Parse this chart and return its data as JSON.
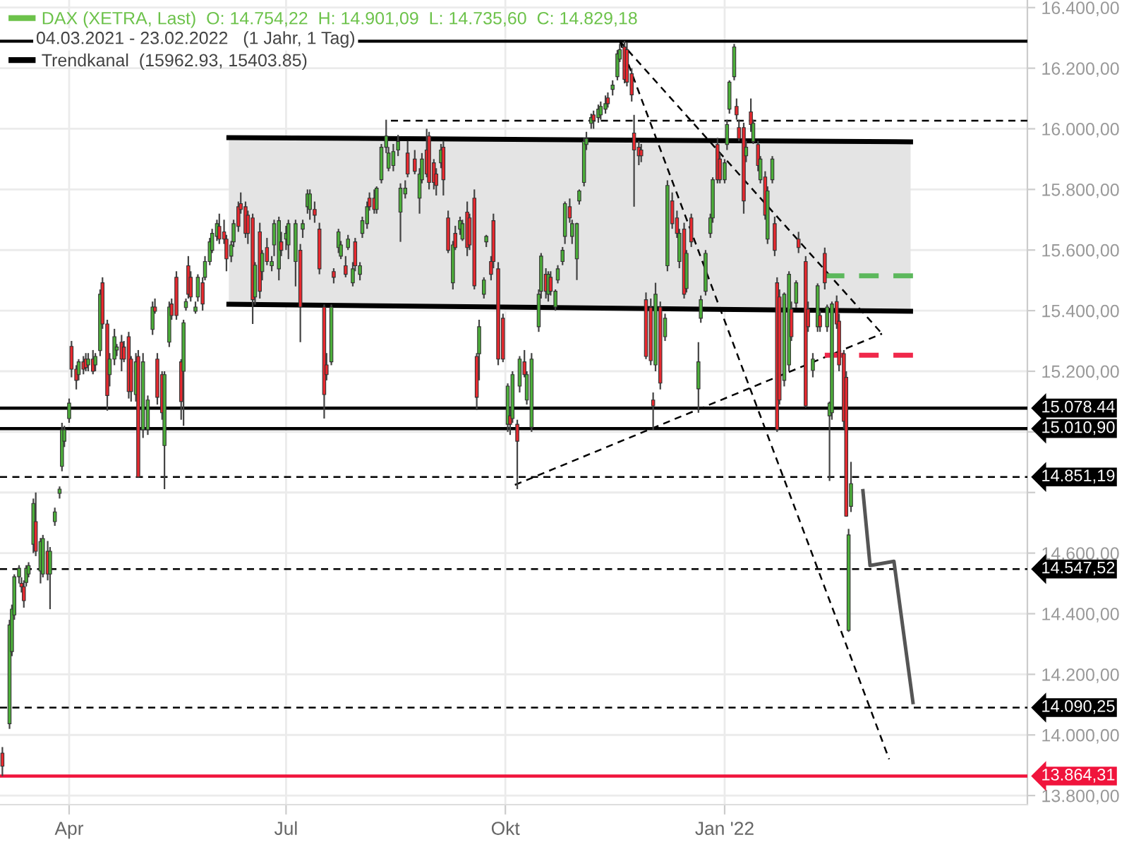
{
  "chart_data": {
    "type": "candlestick",
    "annotations": [
      "04.03.2021 - 23.02.2022   (1 Jahr, 1 Tag)"
    ],
    "xlim": [
      "2021-03-03",
      "2022-05-08"
    ],
    "xticks": [
      {
        "value": "2021-04-01",
        "label": "Apr"
      },
      {
        "value": "2021-07-01",
        "label": "Jul"
      },
      {
        "value": "2021-10-01",
        "label": "Okt"
      },
      {
        "value": "2022-01-01",
        "label": "Jan '22"
      }
    ],
    "ylim": [
      13770,
      16425
    ],
    "yticks": [
      {
        "value": 13800,
        "label": "13.800,00"
      },
      {
        "value": 14000,
        "label": "14.000,00"
      },
      {
        "value": 14200,
        "label": "14.200,00"
      },
      {
        "value": 14400,
        "label": "14.400,00"
      },
      {
        "value": 14600,
        "label": "14.600,00"
      },
      {
        "value": 14800,
        "label": null
      },
      {
        "value": 15000,
        "label": null
      },
      {
        "value": 15200,
        "label": "15.200,00"
      },
      {
        "value": 15400,
        "label": "15.400,00"
      },
      {
        "value": 15600,
        "label": "15.600,00"
      },
      {
        "value": 15800,
        "label": "15.800,00"
      },
      {
        "value": 16000,
        "label": "16.000,00"
      },
      {
        "value": 16200,
        "label": "16.200,00"
      },
      {
        "value": 16400,
        "label": "16.400,00"
      }
    ],
    "grid": true,
    "legend": "top left",
    "ref_lines": [
      {
        "axis": "y",
        "value": 16289,
        "label": null,
        "color": "#000000",
        "line_style": "solid"
      },
      {
        "axis": "y",
        "value": 15078.44,
        "label": "15.078.44",
        "color": "#000000",
        "line_style": "solid"
      },
      {
        "axis": "y",
        "value": 15010.9,
        "label": "15.010,90",
        "color": "#000000",
        "line_style": "solid"
      },
      {
        "axis": "y",
        "value": 14851.19,
        "label": "14.851,19",
        "color": "#000000",
        "line_style": "dashed"
      },
      {
        "axis": "y",
        "value": 14547.52,
        "label": "14.547,52",
        "color": "#000000",
        "line_style": "dashed"
      },
      {
        "axis": "y",
        "value": 14090.25,
        "label": "14.090,25",
        "color": "#000000",
        "line_style": "dashed"
      },
      {
        "axis": "y",
        "value": 13864.31,
        "label": "13.864,31",
        "color": "#f0143c",
        "line_style": "solid"
      }
    ],
    "series": [
      {
        "name": "DAX (XETRA, Last)  O: 14.754,22  H: 14.901,09  L: 14.735,60  C: 14.829,18",
        "color": "#6cc24a",
        "x": [
          "2021-03-04",
          "2021-03-07",
          "2021-03-08",
          "2021-03-09",
          "2021-03-11",
          "2021-03-12",
          "2021-03-13",
          "2021-03-14",
          "2021-03-15",
          "2021-03-17",
          "2021-03-18",
          "2021-03-20",
          "2021-03-21",
          "2021-03-23",
          "2021-03-24",
          "2021-03-26",
          "2021-03-28",
          "2021-03-29",
          "2021-03-30",
          "2021-04-01",
          "2021-04-02",
          "2021-04-04",
          "2021-04-05",
          "2021-04-07",
          "2021-04-08",
          "2021-04-09",
          "2021-04-11",
          "2021-04-12",
          "2021-04-14",
          "2021-04-15",
          "2021-04-17",
          "2021-04-18",
          "2021-04-20",
          "2021-04-21",
          "2021-04-23",
          "2021-04-24",
          "2021-04-26",
          "2021-04-27",
          "2021-04-29",
          "2021-04-30",
          "2021-05-02",
          "2021-05-04",
          "2021-05-06",
          "2021-05-07",
          "2021-05-08",
          "2021-05-10",
          "2021-05-11",
          "2021-05-13",
          "2021-05-14",
          "2021-05-16",
          "2021-05-18",
          "2021-05-19",
          "2021-05-20",
          "2021-05-21",
          "2021-05-22",
          "2021-05-24",
          "2021-05-25",
          "2021-05-27",
          "2021-05-28",
          "2021-05-30",
          "2021-05-31",
          "2021-06-02",
          "2021-06-03",
          "2021-06-05",
          "2021-06-06",
          "2021-06-08",
          "2021-06-09",
          "2021-06-11",
          "2021-06-12",
          "2021-06-14",
          "2021-06-15",
          "2021-06-17",
          "2021-06-18",
          "2021-06-20",
          "2021-06-21",
          "2021-06-23",
          "2021-06-25",
          "2021-06-26",
          "2021-06-28",
          "2021-06-29",
          "2021-07-01",
          "2021-07-02",
          "2021-07-05",
          "2021-07-07",
          "2021-07-08",
          "2021-07-10",
          "2021-07-11",
          "2021-07-13",
          "2021-07-15",
          "2021-07-17",
          "2021-07-18",
          "2021-07-20",
          "2021-07-21",
          "2021-07-23",
          "2021-07-24",
          "2021-07-26",
          "2021-07-27",
          "2021-07-29",
          "2021-07-30",
          "2021-08-01",
          "2021-08-02",
          "2021-08-04",
          "2021-08-05",
          "2021-08-07",
          "2021-08-08",
          "2021-08-10",
          "2021-08-12",
          "2021-08-13",
          "2021-08-15",
          "2021-08-17",
          "2021-08-18",
          "2021-08-20",
          "2021-08-21",
          "2021-08-24",
          "2021-08-26",
          "2021-08-27",
          "2021-08-29",
          "2021-08-30",
          "2021-09-01",
          "2021-09-02",
          "2021-09-04",
          "2021-09-05",
          "2021-09-07",
          "2021-09-09",
          "2021-09-10",
          "2021-09-12",
          "2021-09-13",
          "2021-09-15",
          "2021-09-16",
          "2021-09-18",
          "2021-09-19",
          "2021-09-20",
          "2021-09-22",
          "2021-09-23",
          "2021-09-25",
          "2021-09-26",
          "2021-09-28",
          "2021-09-30",
          "2021-10-02",
          "2021-10-03",
          "2021-10-04",
          "2021-10-06",
          "2021-10-07",
          "2021-10-09",
          "2021-10-10",
          "2021-10-12",
          "2021-10-15",
          "2021-10-16",
          "2021-10-18",
          "2021-10-19",
          "2021-10-20",
          "2021-10-22",
          "2021-10-23",
          "2021-10-25",
          "2021-10-26",
          "2021-10-28",
          "2021-10-29",
          "2021-10-31",
          "2021-11-01",
          "2021-11-03",
          "2021-11-04",
          "2021-11-06",
          "2021-11-07",
          "2021-11-09",
          "2021-11-10",
          "2021-11-12",
          "2021-11-13",
          "2021-11-15",
          "2021-11-17",
          "2021-11-18",
          "2021-11-20",
          "2021-11-21",
          "2021-11-23",
          "2021-11-24",
          "2021-11-26",
          "2021-11-27",
          "2021-11-29",
          "2021-12-01",
          "2021-12-02",
          "2021-12-03",
          "2021-12-05",
          "2021-12-07",
          "2021-12-08",
          "2021-12-10",
          "2021-12-12",
          "2021-12-13",
          "2021-12-15",
          "2021-12-16",
          "2021-12-18",
          "2021-12-21",
          "2021-12-22",
          "2021-12-24",
          "2021-12-26",
          "2021-12-27",
          "2021-12-29",
          "2021-12-30",
          "2022-01-01",
          "2022-01-02",
          "2022-01-03",
          "2022-01-05",
          "2022-01-06",
          "2022-01-07",
          "2022-01-09",
          "2022-01-10",
          "2022-01-12",
          "2022-01-13",
          "2022-01-15",
          "2022-01-16",
          "2022-01-18",
          "2022-01-19",
          "2022-01-21",
          "2022-01-22",
          "2022-01-23",
          "2022-01-24",
          "2022-01-26",
          "2022-01-28",
          "2022-01-29",
          "2022-01-31",
          "2022-02-01",
          "2022-02-04",
          "2022-02-05",
          "2022-02-07",
          "2022-02-09",
          "2022-02-10",
          "2022-02-12",
          "2022-02-13",
          "2022-02-14",
          "2022-02-15",
          "2022-02-17",
          "2022-02-18",
          "2022-02-20",
          "2022-02-21",
          "2022-02-22",
          "2022-02-23"
        ],
        "ohlc": [
          [
            13940,
            13960,
            13864,
            13897
          ],
          [
            14037,
            14380,
            14020,
            14363
          ],
          [
            14275,
            14430,
            14260,
            14415
          ],
          [
            14396,
            14530,
            14380,
            14522
          ],
          [
            14522,
            14560,
            14500,
            14550
          ],
          [
            14500,
            14520,
            14470,
            14489
          ],
          [
            14489,
            14510,
            14420,
            14443
          ],
          [
            14503,
            14560,
            14490,
            14550
          ],
          [
            14531,
            14570,
            14520,
            14559
          ],
          [
            14629,
            14780,
            14600,
            14764
          ],
          [
            14704,
            14800,
            14590,
            14606
          ],
          [
            14541,
            14650,
            14500,
            14638
          ],
          [
            14531,
            14660,
            14520,
            14648
          ],
          [
            14606,
            14640,
            14510,
            14531
          ],
          [
            14531,
            14620,
            14415,
            14606
          ],
          [
            14704,
            14750,
            14690,
            14736
          ],
          [
            14797,
            14820,
            14780,
            14811
          ],
          [
            14886,
            15030,
            14870,
            15007
          ],
          [
            14969,
            15020,
            14950,
            15007
          ],
          [
            15044,
            15110,
            15030,
            15095
          ],
          [
            15282,
            15300,
            15180,
            15207
          ],
          [
            15207,
            15220,
            15140,
            15170
          ],
          [
            15189,
            15240,
            15170,
            15231
          ],
          [
            15231,
            15250,
            15190,
            15207
          ],
          [
            15240,
            15260,
            15200,
            15212
          ],
          [
            15221,
            15260,
            15200,
            15240
          ],
          [
            15240,
            15270,
            15190,
            15200
          ],
          [
            15221,
            15260,
            15200,
            15249
          ],
          [
            15268,
            15470,
            15250,
            15454
          ],
          [
            15492,
            15510,
            15340,
            15356
          ],
          [
            15356,
            15370,
            15070,
            15120
          ],
          [
            15189,
            15260,
            15150,
            15240
          ],
          [
            15240,
            15340,
            15220,
            15314
          ],
          [
            15270,
            15290,
            15250,
            15280
          ],
          [
            15296,
            15320,
            15200,
            15240
          ],
          [
            15280,
            15300,
            15230,
            15240
          ],
          [
            15314,
            15330,
            15110,
            15133
          ],
          [
            15240,
            15250,
            15100,
            15133
          ],
          [
            15123,
            15260,
            15100,
            15231
          ],
          [
            15249,
            15270,
            14848,
            14851
          ],
          [
            15007,
            15260,
            14980,
            15231
          ],
          [
            15007,
            15120,
            14990,
            15105
          ],
          [
            15338,
            15430,
            15320,
            15412
          ],
          [
            15412,
            15440,
            15390,
            15398
          ],
          [
            15240,
            15260,
            15090,
            15114
          ],
          [
            15189,
            15200,
            15040,
            15063
          ],
          [
            14955,
            15200,
            14811,
            15189
          ],
          [
            15296,
            15430,
            15280,
            15412
          ],
          [
            15422,
            15440,
            15370,
            15384
          ],
          [
            15510,
            15530,
            15370,
            15384
          ],
          [
            15231,
            15240,
            15040,
            15100
          ],
          [
            15200,
            15370,
            15020,
            15360
          ],
          [
            15410,
            15440,
            15400,
            15430
          ],
          [
            15548,
            15580,
            15440,
            15454
          ],
          [
            15510,
            15530,
            15430,
            15445
          ],
          [
            15398,
            15430,
            15390,
            15412
          ],
          [
            15445,
            15520,
            15430,
            15510
          ],
          [
            15492,
            15510,
            15400,
            15422
          ],
          [
            15510,
            15580,
            15500,
            15562
          ],
          [
            15562,
            15640,
            15550,
            15627
          ],
          [
            15599,
            15670,
            15590,
            15655
          ],
          [
            15645,
            15700,
            15630,
            15687
          ],
          [
            15678,
            15720,
            15620,
            15636
          ],
          [
            15660,
            15700,
            15620,
            15636
          ],
          [
            15636,
            15650,
            15530,
            15571
          ],
          [
            15580,
            15630,
            15560,
            15617
          ],
          [
            15627,
            15700,
            15610,
            15687
          ],
          [
            15743,
            15760,
            15660,
            15678
          ],
          [
            15753,
            15790,
            15720,
            15734
          ],
          [
            15743,
            15760,
            15640,
            15655
          ],
          [
            15715,
            15730,
            15620,
            15655
          ],
          [
            15706,
            15720,
            15356,
            15436
          ],
          [
            15445,
            15560,
            15420,
            15550
          ],
          [
            15660,
            15690,
            15440,
            15464
          ],
          [
            15529,
            15600,
            15500,
            15589
          ],
          [
            15608,
            15640,
            15550,
            15562
          ],
          [
            15548,
            15580,
            15530,
            15562
          ],
          [
            15617,
            15700,
            15580,
            15687
          ],
          [
            15538,
            15710,
            15500,
            15697
          ],
          [
            15627,
            15660,
            15580,
            15599
          ],
          [
            15636,
            15680,
            15600,
            15655
          ],
          [
            15617,
            15700,
            15570,
            15687
          ],
          [
            15562,
            15700,
            15480,
            15687
          ],
          [
            15599,
            15620,
            15296,
            15412
          ],
          [
            15669,
            15700,
            15640,
            15687
          ],
          [
            15743,
            15800,
            15720,
            15785
          ],
          [
            15734,
            15800,
            15700,
            15785
          ],
          [
            15734,
            15760,
            15690,
            15715
          ],
          [
            15669,
            15690,
            15520,
            15538
          ],
          [
            15412,
            15420,
            15044,
            15123
          ],
          [
            15221,
            15260,
            15170,
            15189
          ],
          [
            15231,
            15420,
            15220,
            15412
          ],
          [
            15529,
            15540,
            15490,
            15510
          ],
          [
            15608,
            15670,
            15590,
            15660
          ],
          [
            15580,
            15630,
            15570,
            15617
          ],
          [
            15548,
            15580,
            15510,
            15520
          ],
          [
            15608,
            15650,
            15600,
            15636
          ],
          [
            15492,
            15560,
            15480,
            15538
          ],
          [
            15627,
            15640,
            15530,
            15548
          ],
          [
            15520,
            15560,
            15500,
            15548
          ],
          [
            15655,
            15710,
            15640,
            15697
          ],
          [
            15687,
            15760,
            15670,
            15743
          ],
          [
            15771,
            15790,
            15730,
            15743
          ],
          [
            15771,
            15800,
            15720,
            15734
          ],
          [
            15734,
            15810,
            15720,
            15804
          ],
          [
            15832,
            15950,
            15820,
            15939
          ],
          [
            15939,
            16030,
            15920,
            15976
          ],
          [
            15870,
            15940,
            15860,
            15920
          ],
          [
            15879,
            15950,
            15860,
            15925
          ],
          [
            15930,
            15980,
            15910,
            15958
          ],
          [
            15725,
            15820,
            15627,
            15804
          ],
          [
            15785,
            15830,
            15770,
            15804
          ],
          [
            15920,
            15960,
            15840,
            15851
          ],
          [
            15900,
            15930,
            15850,
            15860
          ],
          [
            15771,
            15870,
            15720,
            15851
          ],
          [
            15832,
            15920,
            15820,
            15900
          ],
          [
            15930,
            16000,
            15840,
            15851
          ],
          [
            15976,
            15990,
            15800,
            15823
          ],
          [
            15888,
            15900,
            15800,
            15823
          ],
          [
            15851,
            15870,
            15780,
            15813
          ],
          [
            15888,
            15950,
            15870,
            15930
          ],
          [
            15939,
            15960,
            15780,
            15832
          ],
          [
            15706,
            15730,
            15590,
            15599
          ],
          [
            15492,
            15630,
            15470,
            15617
          ],
          [
            15655,
            15680,
            15600,
            15608
          ],
          [
            15669,
            15710,
            15650,
            15697
          ],
          [
            15636,
            15700,
            15630,
            15687
          ],
          [
            15725,
            15760,
            15580,
            15608
          ],
          [
            15706,
            15720,
            15600,
            15617
          ],
          [
            15771,
            15800,
            15470,
            15482
          ],
          [
            15249,
            15260,
            15072,
            15114
          ],
          [
            15258,
            15370,
            15170,
            15347
          ],
          [
            15454,
            15510,
            15440,
            15501
          ],
          [
            15627,
            15650,
            15610,
            15645
          ],
          [
            15562,
            15580,
            15500,
            15520
          ],
          [
            15697,
            15720,
            15540,
            15562
          ],
          [
            15538,
            15560,
            15220,
            15240
          ],
          [
            15375,
            15390,
            15230,
            15240
          ],
          [
            15025,
            15160,
            15000,
            15151
          ],
          [
            15053,
            15080,
            14990,
            15025
          ],
          [
            15044,
            15200,
            15030,
            15189
          ],
          [
            15025,
            15040,
            14811,
            14969
          ],
          [
            15151,
            15250,
            15130,
            15240
          ],
          [
            15231,
            15270,
            15180,
            15189
          ],
          [
            15105,
            15200,
            15090,
            15189
          ],
          [
            15015,
            15260,
            15000,
            15240
          ],
          [
            15347,
            15470,
            15330,
            15454
          ],
          [
            15464,
            15590,
            15440,
            15580
          ],
          [
            15520,
            15540,
            15440,
            15464
          ],
          [
            15454,
            15530,
            15430,
            15520
          ],
          [
            15510,
            15530,
            15450,
            15464
          ],
          [
            15412,
            15470,
            15400,
            15464
          ],
          [
            15501,
            15550,
            15490,
            15538
          ],
          [
            15562,
            15610,
            15550,
            15599
          ],
          [
            15645,
            15760,
            15620,
            15753
          ],
          [
            15743,
            15770,
            15690,
            15706
          ],
          [
            15645,
            15700,
            15620,
            15687
          ],
          [
            15571,
            15690,
            15501,
            15687
          ],
          [
            15762,
            15800,
            15750,
            15795
          ],
          [
            15823,
            15970,
            15810,
            15958
          ],
          [
            15948,
            15990,
            15930,
            15968
          ],
          [
            16018,
            16050,
            16000,
            16037
          ],
          [
            16046,
            16060,
            16000,
            16027
          ],
          [
            16037,
            16080,
            16020,
            16065
          ],
          [
            16046,
            16090,
            16030,
            16074
          ],
          [
            16065,
            16110,
            16050,
            16083
          ],
          [
            16102,
            16120,
            16070,
            16083
          ],
          [
            16130,
            16160,
            16110,
            16144
          ],
          [
            16172,
            16260,
            16160,
            16247
          ],
          [
            16230,
            16280,
            16220,
            16261
          ],
          [
            16270,
            16290,
            16150,
            16163
          ],
          [
            16261,
            16285,
            16140,
            16154
          ],
          [
            16182,
            16200,
            16090,
            16112
          ],
          [
            15986,
            16046,
            15743,
            15930
          ],
          [
            15939,
            15960,
            15880,
            15911
          ],
          [
            15930,
            15950,
            15890,
            15911
          ],
          [
            15436,
            15460,
            15240,
            15249
          ],
          [
            15410,
            15440,
            15220,
            15235
          ],
          [
            15105,
            15130,
            15007,
            15086
          ],
          [
            15221,
            15492,
            15200,
            15454
          ],
          [
            15412,
            15430,
            15140,
            15161
          ],
          [
            15314,
            15390,
            15300,
            15375
          ],
          [
            15548,
            15830,
            15530,
            15813
          ],
          [
            15762,
            15790,
            15670,
            15687
          ],
          [
            15706,
            15730,
            15640,
            15655
          ],
          [
            15562,
            15670,
            15540,
            15655
          ],
          [
            15669,
            15690,
            15440,
            15454
          ],
          [
            15473,
            15600,
            15460,
            15589
          ],
          [
            15706,
            15720,
            15610,
            15627
          ],
          [
            15142,
            15296,
            15063,
            15231
          ],
          [
            15375,
            15450,
            15360,
            15436
          ],
          [
            15464,
            15600,
            15450,
            15589
          ],
          [
            15655,
            15720,
            15640,
            15706
          ],
          [
            15706,
            15840,
            15690,
            15832
          ],
          [
            15948,
            15970,
            15820,
            15832
          ],
          [
            15900,
            15920,
            15820,
            15832
          ],
          [
            15832,
            15900,
            15820,
            15888
          ],
          [
            15948,
            16030,
            15930,
            16014
          ],
          [
            16065,
            16160,
            16050,
            16154
          ],
          [
            16172,
            16280,
            16160,
            16270
          ],
          [
            16074,
            16100,
            16030,
            16046
          ],
          [
            16004,
            16030,
            15960,
            15968
          ],
          [
            16004,
            16020,
            15720,
            15762
          ],
          [
            15911,
            15960,
            15890,
            15939
          ],
          [
            16056,
            16100,
            15990,
            16014
          ],
          [
            15958,
            16030,
            15950,
            16018
          ],
          [
            15948,
            15960,
            15860,
            15879
          ],
          [
            15832,
            15910,
            15820,
            15900
          ],
          [
            15841,
            15860,
            15700,
            15715
          ],
          [
            15636,
            15810,
            15620,
            15795
          ],
          [
            15832,
            15910,
            15820,
            15900
          ],
          [
            15687,
            15710,
            15580,
            15599
          ],
          [
            15492,
            15510,
            15000,
            15007
          ],
          [
            15445,
            15470,
            15090,
            15105
          ],
          [
            15170,
            15460,
            15150,
            15454
          ],
          [
            15221,
            15530,
            15200,
            15520
          ],
          [
            15405,
            15430,
            15300,
            15314
          ],
          [
            15425,
            15500,
            15410,
            15492
          ],
          [
            15636,
            15660,
            15590,
            15608
          ],
          [
            15562,
            15580,
            15080,
            15086
          ],
          [
            15405,
            15430,
            15330,
            15347
          ],
          [
            15203,
            15260,
            15180,
            15240
          ],
          [
            15347,
            15490,
            15330,
            15482
          ],
          [
            15384,
            15400,
            15330,
            15347
          ],
          [
            15589,
            15608,
            15470,
            15492
          ],
          [
            15347,
            15420,
            15330,
            15412
          ],
          [
            15053,
            15100,
            14838,
            15095
          ],
          [
            15063,
            15430,
            15040,
            15422
          ],
          [
            15430,
            15450,
            15340,
            15356
          ],
          [
            15365,
            15390,
            15200,
            15221
          ],
          [
            15258,
            15270,
            15010,
            15035
          ],
          [
            15180,
            15200,
            14720,
            14722
          ],
          [
            14345,
            14680,
            14340,
            14660
          ],
          [
            14754.22,
            14901.09,
            14735.6,
            14829.18
          ]
        ],
        "colors": [
          "#e8292f",
          "#4caf3a",
          "#4caf3a",
          "#4caf3a",
          "#4caf3a",
          "#e8292f",
          "#e8292f",
          "#4caf3a",
          "#4caf3a",
          "#4caf3a",
          "#e8292f",
          "#4caf3a",
          "#4caf3a",
          "#e8292f",
          "#4caf3a",
          "#4caf3a",
          "#4caf3a",
          "#4caf3a",
          "#4caf3a",
          "#4caf3a",
          "#e8292f",
          "#e8292f",
          "#4caf3a",
          "#e8292f",
          "#e8292f",
          "#4caf3a",
          "#e8292f",
          "#4caf3a",
          "#4caf3a",
          "#e8292f",
          "#e8292f",
          "#4caf3a",
          "#4caf3a",
          "#4caf3a",
          "#e8292f",
          "#e8292f",
          "#e8292f",
          "#e8292f",
          "#4caf3a",
          "#e8292f",
          "#4caf3a",
          "#4caf3a",
          "#4caf3a",
          "#e8292f",
          "#e8292f",
          "#e8292f",
          "#4caf3a",
          "#4caf3a",
          "#e8292f",
          "#e8292f",
          "#e8292f",
          "#4caf3a",
          "#4caf3a",
          "#e8292f",
          "#e8292f",
          "#4caf3a",
          "#4caf3a",
          "#e8292f",
          "#4caf3a",
          "#4caf3a",
          "#4caf3a",
          "#4caf3a",
          "#e8292f",
          "#e8292f",
          "#e8292f",
          "#4caf3a",
          "#4caf3a",
          "#e8292f",
          "#e8292f",
          "#e8292f",
          "#e8292f",
          "#e8292f",
          "#4caf3a",
          "#e8292f",
          "#4caf3a",
          "#e8292f",
          "#4caf3a",
          "#4caf3a",
          "#4caf3a",
          "#e8292f",
          "#4caf3a",
          "#4caf3a",
          "#4caf3a",
          "#e8292f",
          "#4caf3a",
          "#4caf3a",
          "#4caf3a",
          "#e8292f",
          "#e8292f",
          "#e8292f",
          "#e8292f",
          "#4caf3a",
          "#e8292f",
          "#4caf3a",
          "#4caf3a",
          "#e8292f",
          "#4caf3a",
          "#4caf3a",
          "#e8292f",
          "#4caf3a",
          "#4caf3a",
          "#4caf3a",
          "#e8292f",
          "#e8292f",
          "#4caf3a",
          "#4caf3a",
          "#4caf3a",
          "#4caf3a",
          "#4caf3a",
          "#4caf3a",
          "#4caf3a",
          "#4caf3a",
          "#e8292f",
          "#e8292f",
          "#4caf3a",
          "#4caf3a",
          "#e8292f",
          "#e8292f",
          "#e8292f",
          "#e8292f",
          "#4caf3a",
          "#e8292f",
          "#e8292f",
          "#4caf3a",
          "#e8292f",
          "#4caf3a",
          "#4caf3a",
          "#e8292f",
          "#e8292f",
          "#e8292f",
          "#e8292f",
          "#4caf3a",
          "#4caf3a",
          "#4caf3a",
          "#e8292f",
          "#e8292f",
          "#e8292f",
          "#e8292f",
          "#4caf3a",
          "#e8292f",
          "#4caf3a",
          "#e8292f",
          "#4caf3a",
          "#e8292f",
          "#4caf3a",
          "#4caf3a",
          "#4caf3a",
          "#4caf3a",
          "#e8292f",
          "#4caf3a",
          "#e8292f",
          "#4caf3a",
          "#4caf3a",
          "#4caf3a",
          "#4caf3a",
          "#e8292f",
          "#4caf3a",
          "#4caf3a",
          "#4caf3a",
          "#4caf3a",
          "#4caf3a",
          "#4caf3a",
          "#e8292f",
          "#4caf3a",
          "#4caf3a",
          "#4caf3a",
          "#e8292f",
          "#4caf3a",
          "#4caf3a",
          "#4caf3a",
          "#e8292f",
          "#e8292f",
          "#e8292f",
          "#e8292f",
          "#e8292f",
          "#e8292f",
          "#e8292f",
          "#e8292f",
          "#e8292f",
          "#4caf3a",
          "#e8292f",
          "#4caf3a",
          "#4caf3a",
          "#e8292f",
          "#e8292f",
          "#4caf3a",
          "#e8292f",
          "#4caf3a",
          "#e8292f",
          "#4caf3a",
          "#4caf3a",
          "#4caf3a",
          "#4caf3a",
          "#4caf3a",
          "#e8292f",
          "#e8292f",
          "#4caf3a",
          "#4caf3a",
          "#4caf3a",
          "#4caf3a",
          "#e8292f",
          "#e8292f",
          "#e8292f",
          "#4caf3a",
          "#e8292f",
          "#4caf3a",
          "#e8292f",
          "#4caf3a",
          "#e8292f",
          "#4caf3a",
          "#4caf3a",
          "#e8292f",
          "#e8292f",
          "#e8292f",
          "#4caf3a",
          "#4caf3a",
          "#e8292f",
          "#4caf3a",
          "#e8292f",
          "#e8292f",
          "#e8292f",
          "#4caf3a",
          "#4caf3a",
          "#e8292f",
          "#e8292f",
          "#4caf3a",
          "#4caf3a",
          "#4caf3a",
          "#e8292f",
          "#e8292f",
          "#e8292f",
          "#e8292f",
          "#4caf3a",
          "#4caf3a"
        ]
      },
      {
        "type": "line",
        "name": "Trendkanal  (15962.93, 15403.85)",
        "color": "#000000",
        "x": [
          "2021-06-07",
          "2022-03-20"
        ],
        "values": [
          15971,
          15957
        ]
      },
      {
        "type": "line",
        "color": "#000000",
        "line_style": "solid",
        "x": [
          "2021-06-07",
          "2022-03-20"
        ],
        "values": [
          15421,
          15398
        ]
      },
      {
        "type": "line",
        "color": "#000000",
        "line_style": "dashed",
        "x": [
          "2021-08-14",
          "2022-05-08"
        ],
        "values": [
          16027,
          16027
        ]
      },
      {
        "type": "line",
        "color": "#000000",
        "line_style": "dashed",
        "x": [
          "2021-11-18",
          "2022-03-11"
        ],
        "values": [
          16289,
          13920
        ]
      },
      {
        "type": "line",
        "color": "#000000",
        "line_style": "dashed",
        "x": [
          "2021-11-18",
          "2022-03-08"
        ],
        "values": [
          16289,
          15324
        ]
      },
      {
        "type": "line",
        "color": "#000000",
        "line_style": "dashed",
        "x": [
          "2021-10-05",
          "2022-03-08"
        ],
        "values": [
          14825,
          15324
        ]
      },
      {
        "type": "line",
        "color": "#5cb85c",
        "line_style": "dashed",
        "x": [
          "2022-02-12",
          "2022-03-24"
        ],
        "values": [
          15515,
          15515
        ]
      },
      {
        "type": "line",
        "color": "#f0284a",
        "line_style": "dashed",
        "x": [
          "2022-02-12",
          "2022-03-24"
        ],
        "values": [
          15253,
          15253
        ]
      },
      {
        "type": "line",
        "color": "#555555",
        "line_style": "solid",
        "x": [
          "2022-02-28",
          "2022-03-03",
          "2022-03-13",
          "2022-03-21"
        ],
        "values": [
          14806,
          14559,
          14573,
          14107
        ]
      }
    ]
  }
}
